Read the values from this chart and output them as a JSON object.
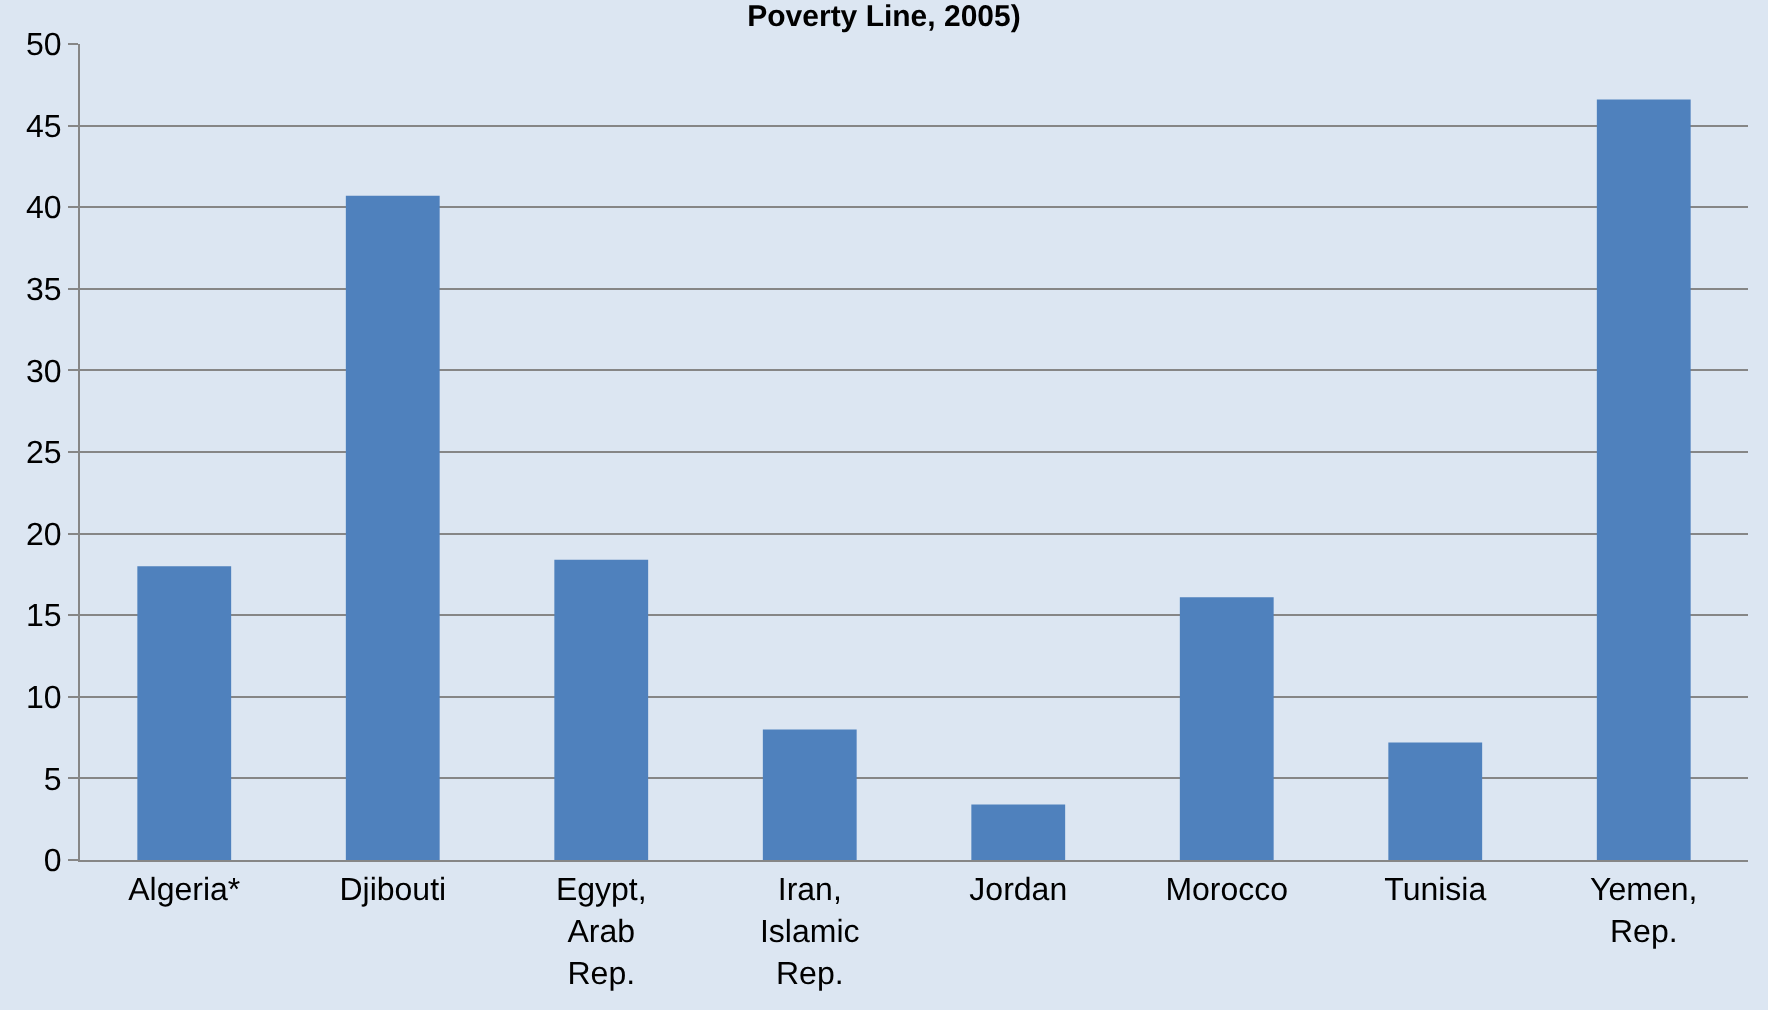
{
  "chart_data": {
    "type": "bar",
    "title": "Poverty Line, 2005)",
    "categories": [
      "Algeria*",
      "Djibouti",
      "Egypt, Arab Rep.",
      "Iran, Islamic Rep.",
      "Jordan",
      "Morocco",
      "Tunisia",
      "Yemen, Rep."
    ],
    "values": [
      18,
      40.7,
      18.4,
      8,
      3.4,
      16.1,
      7.2,
      46.6
    ],
    "color": "#4f81bd",
    "ylim": [
      0,
      50
    ],
    "yticks": [
      0,
      5,
      10,
      15,
      20,
      25,
      30,
      35,
      40,
      45,
      50
    ],
    "grid": "y"
  }
}
